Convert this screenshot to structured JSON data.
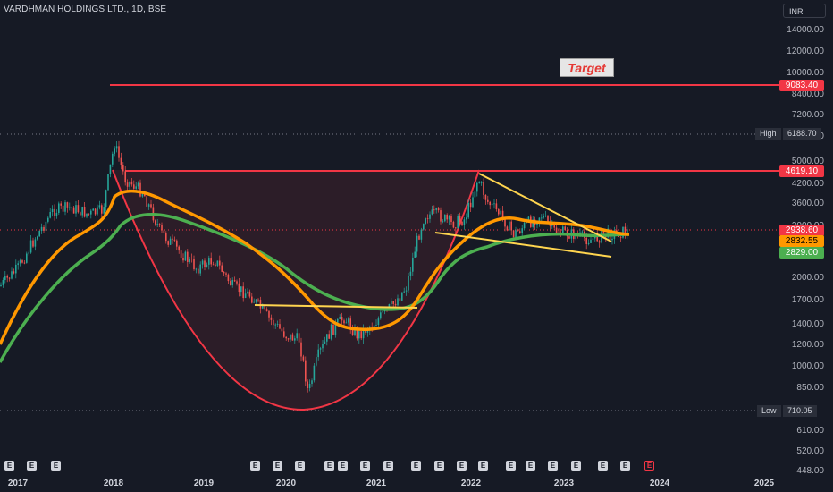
{
  "header": {
    "title": "VARDHMAN HOLDINGS LTD., 1D, BSE",
    "currency": "INR"
  },
  "annotations": {
    "target_label": "Target"
  },
  "price_axis": {
    "ticks": [
      "14000.00",
      "12000.00",
      "10000.00",
      "8400.00",
      "7200.00",
      "6000.00",
      "5000.00",
      "4200.00",
      "3600.00",
      "3000.00",
      "2000.00",
      "1700.00",
      "1400.00",
      "1200.00",
      "1000.00",
      "850.00",
      "610.00",
      "520.00",
      "448.00"
    ],
    "tags": {
      "target": {
        "value": "9083.40",
        "color": "#f23645"
      },
      "resistance": {
        "value": "4619.10",
        "color": "#f23645"
      },
      "last": {
        "value": "2938.60",
        "color": "#f23645"
      },
      "ema_fast": {
        "value": "2832.55",
        "color": "#ff9800"
      },
      "ema_slow": {
        "value": "2829.00",
        "color": "#4caf50"
      }
    },
    "high": {
      "label": "High",
      "value": "6188.70"
    },
    "low": {
      "label": "Low",
      "value": "710.05"
    }
  },
  "time_axis": {
    "labels": [
      "2017",
      "2018",
      "2019",
      "2020",
      "2021",
      "2022",
      "2023",
      "2024",
      "2025"
    ]
  },
  "earnings_marker": "E",
  "colors": {
    "background": "#161a25",
    "resistance": "#f23645",
    "ema_fast": "#ff9800",
    "ema_slow": "#4caf50",
    "trendline": "#ffd54f",
    "candle_up": "#26a69a",
    "candle_down": "#ef5350"
  }
}
